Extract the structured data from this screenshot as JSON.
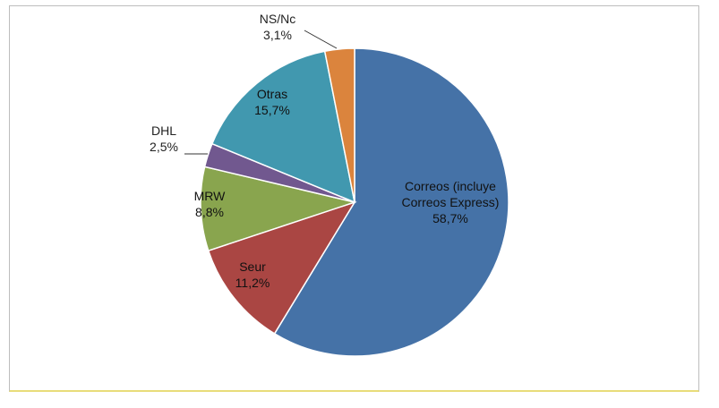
{
  "chart_data": {
    "type": "pie",
    "categories": [
      "Correos (incluye Correos Express)",
      "Seur",
      "MRW",
      "DHL",
      "Otras",
      "NS/Nc"
    ],
    "values": [
      58.7,
      11.2,
      8.8,
      2.5,
      15.7,
      3.1
    ],
    "value_labels": [
      "58,7%",
      "11,2%",
      "8,8%",
      "2,5%",
      "15,7%",
      "3,1%"
    ],
    "label_lines": [
      [
        "Correos (incluye",
        "Correos Express)"
      ],
      [
        "Seur"
      ],
      [
        "MRW"
      ],
      [
        "DHL"
      ],
      [
        "Otras"
      ],
      [
        "NS/Nc"
      ]
    ],
    "colors": [
      "#4572a7",
      "#aa4643",
      "#89a54e",
      "#71588f",
      "#4198af",
      "#db843d"
    ],
    "start": "12 o'clock",
    "direction": "clockwise",
    "legend": "none",
    "title": ""
  }
}
